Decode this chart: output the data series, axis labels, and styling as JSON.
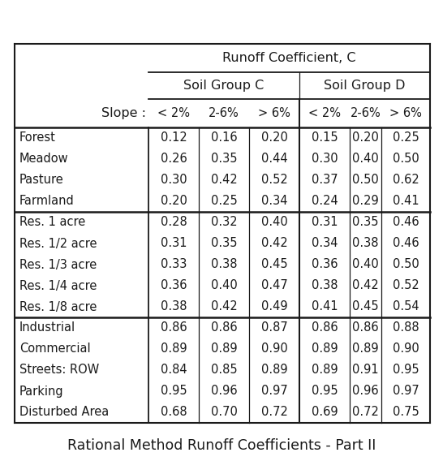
{
  "title": "Rational Method Runoff Coefficients - Part II",
  "main_header": "Runoff Coefficient, C",
  "subheader_c": "Soil Group C",
  "subheader_d": "Soil Group D",
  "slope_label": "Slope :",
  "slope_cols": [
    "< 2%",
    "2-6%",
    "> 6%",
    "< 2%",
    "2-6%",
    "> 6%"
  ],
  "row_groups": [
    {
      "rows": [
        [
          "Forest",
          "0.12",
          "0.16",
          "0.20",
          "0.15",
          "0.20",
          "0.25"
        ],
        [
          "Meadow",
          "0.26",
          "0.35",
          "0.44",
          "0.30",
          "0.40",
          "0.50"
        ],
        [
          "Pasture",
          "0.30",
          "0.42",
          "0.52",
          "0.37",
          "0.50",
          "0.62"
        ],
        [
          "Farmland",
          "0.20",
          "0.25",
          "0.34",
          "0.24",
          "0.29",
          "0.41"
        ]
      ]
    },
    {
      "rows": [
        [
          "Res. 1 acre",
          "0.28",
          "0.32",
          "0.40",
          "0.31",
          "0.35",
          "0.46"
        ],
        [
          "Res. 1/2 acre",
          "0.31",
          "0.35",
          "0.42",
          "0.34",
          "0.38",
          "0.46"
        ],
        [
          "Res. 1/3 acre",
          "0.33",
          "0.38",
          "0.45",
          "0.36",
          "0.40",
          "0.50"
        ],
        [
          "Res. 1/4 acre",
          "0.36",
          "0.40",
          "0.47",
          "0.38",
          "0.42",
          "0.52"
        ],
        [
          "Res. 1/8 acre",
          "0.38",
          "0.42",
          "0.49",
          "0.41",
          "0.45",
          "0.54"
        ]
      ]
    },
    {
      "rows": [
        [
          "Industrial",
          "0.86",
          "0.86",
          "0.87",
          "0.86",
          "0.86",
          "0.88"
        ],
        [
          "Commercial",
          "0.89",
          "0.89",
          "0.90",
          "0.89",
          "0.89",
          "0.90"
        ],
        [
          "Streets: ROW",
          "0.84",
          "0.85",
          "0.89",
          "0.89",
          "0.91",
          "0.95"
        ],
        [
          "Parking",
          "0.95",
          "0.96",
          "0.97",
          "0.95",
          "0.96",
          "0.97"
        ],
        [
          "Disturbed Area",
          "0.68",
          "0.70",
          "0.72",
          "0.69",
          "0.72",
          "0.75"
        ]
      ]
    }
  ],
  "bg_color": "#ffffff",
  "text_color": "#1a1a1a",
  "line_color": "#1a1a1a",
  "title_fontsize": 12.5,
  "header_fontsize": 11.5,
  "cell_fontsize": 10.5,
  "fig_width": 5.46,
  "fig_height": 5.84,
  "dpi": 100
}
